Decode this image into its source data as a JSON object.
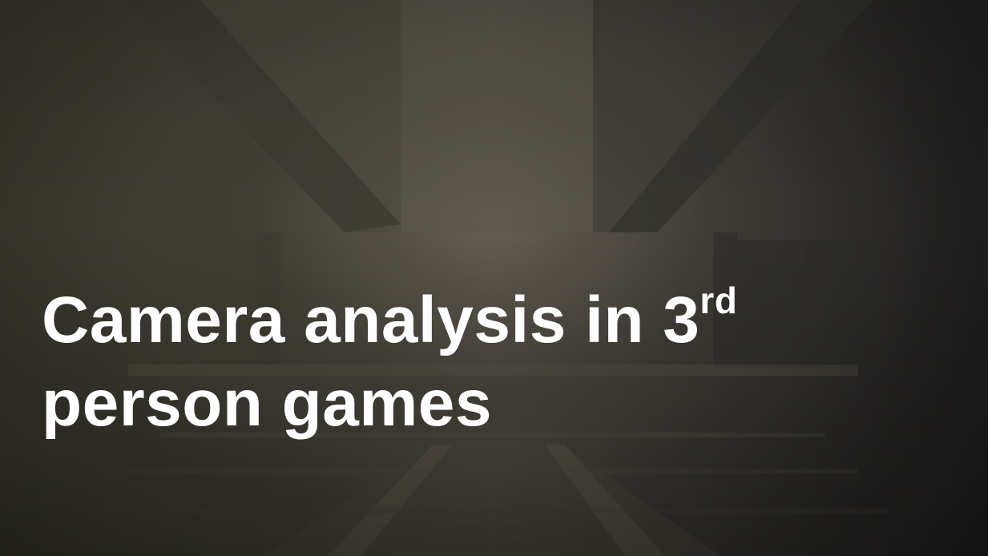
{
  "slide": {
    "title_main": "Camera analysis in 3",
    "title_superscript": "rd",
    "title_line2": "person games"
  },
  "colors": {
    "title_text": "#ffffff",
    "background_dark": "#2a2824",
    "background_warm": "#4a463e"
  },
  "background": {
    "image": "dark concrete corridor"
  }
}
